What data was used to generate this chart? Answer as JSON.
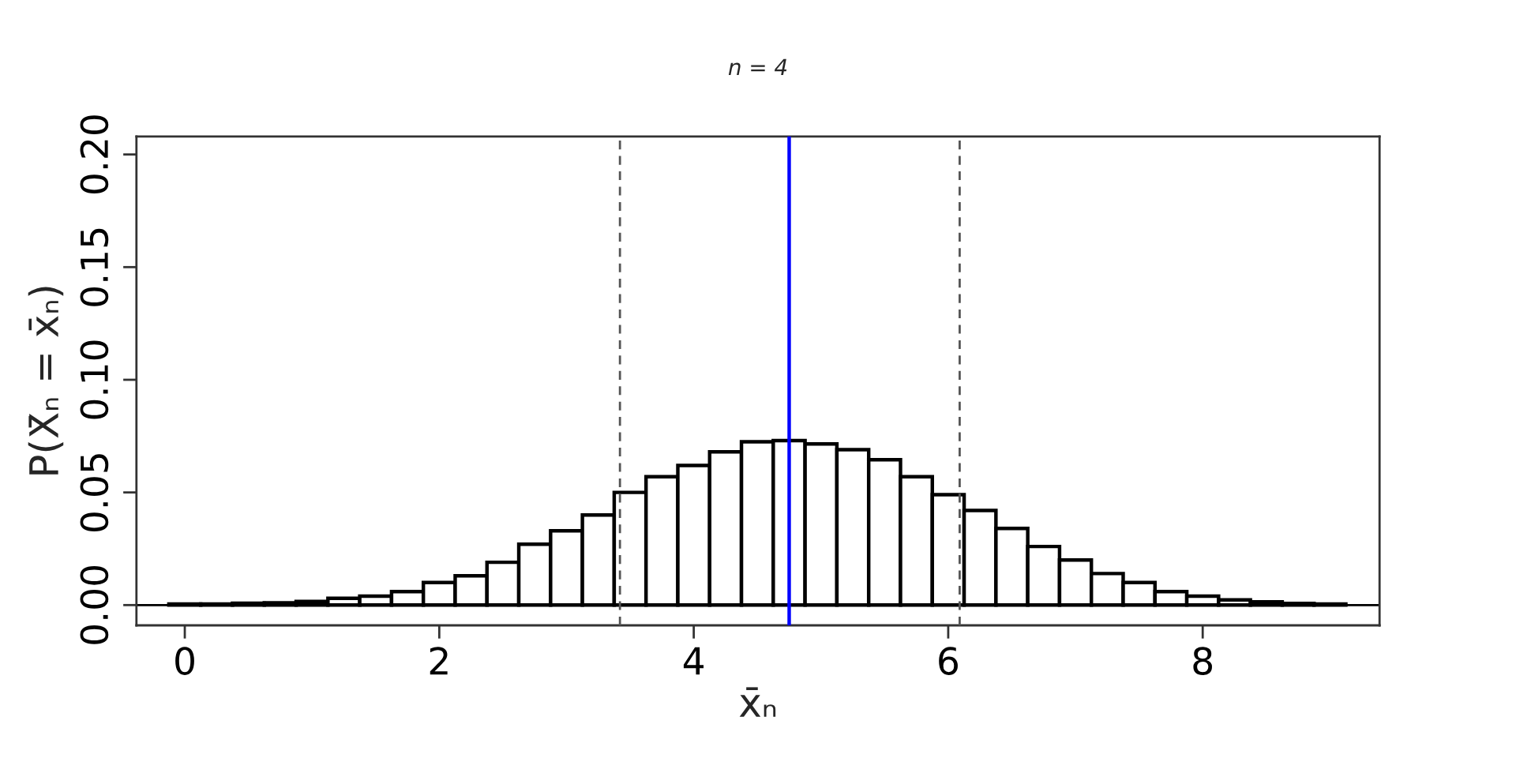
{
  "chart_data": {
    "type": "histogram",
    "title": "n = 4",
    "xlabel": "x̄ₙ",
    "ylabel": "P(X̄ₙ = x̄ₙ)",
    "bins": [
      -0.125,
      0.125,
      0.375,
      0.625,
      0.875,
      1.125,
      1.375,
      1.625,
      1.875,
      2.125,
      2.375,
      2.625,
      2.875,
      3.125,
      3.375,
      3.625,
      3.875,
      4.125,
      4.375,
      4.625,
      4.875,
      5.125,
      5.375,
      5.625,
      5.875,
      6.125,
      6.375,
      6.625,
      6.875,
      7.125,
      7.375,
      7.625,
      7.875,
      8.125,
      8.375,
      8.625,
      8.875,
      9.125
    ],
    "values": [
      0.0005,
      0.0005,
      0.0008,
      0.001,
      0.0016,
      0.003,
      0.004,
      0.006,
      0.01,
      0.013,
      0.019,
      0.027,
      0.033,
      0.04,
      0.05,
      0.057,
      0.062,
      0.068,
      0.0725,
      0.073,
      0.0715,
      0.069,
      0.0645,
      0.057,
      0.049,
      0.042,
      0.034,
      0.026,
      0.02,
      0.014,
      0.01,
      0.006,
      0.004,
      0.0023,
      0.0014,
      0.0007,
      0.0005
    ],
    "color": "#ffffff",
    "xlim": [
      -0.38,
      9.39
    ],
    "ylim": [
      -0.009,
      0.208
    ],
    "xticks": [
      0,
      2,
      4,
      6,
      8
    ],
    "yticks": [
      {
        "value": 0,
        "label": "0.00"
      },
      {
        "value": 0.05,
        "label": "0.05"
      },
      {
        "value": 0.1,
        "label": "0.10"
      },
      {
        "value": 0.15,
        "label": "0.15"
      },
      {
        "value": 0.2,
        "label": "0.20"
      }
    ],
    "ref_lines": [
      {
        "axis": "y",
        "value": 0,
        "color": "#000000",
        "line_style": "solid"
      },
      {
        "axis": "x",
        "value": 4.75,
        "color": "#0000ff",
        "line_style": "solid"
      },
      {
        "axis": "x",
        "value": 3.42,
        "color": "#555555",
        "line_style": "dashed"
      },
      {
        "axis": "x",
        "value": 6.09,
        "color": "#555555",
        "line_style": "dashed"
      }
    ],
    "grid": false,
    "legend": false
  }
}
